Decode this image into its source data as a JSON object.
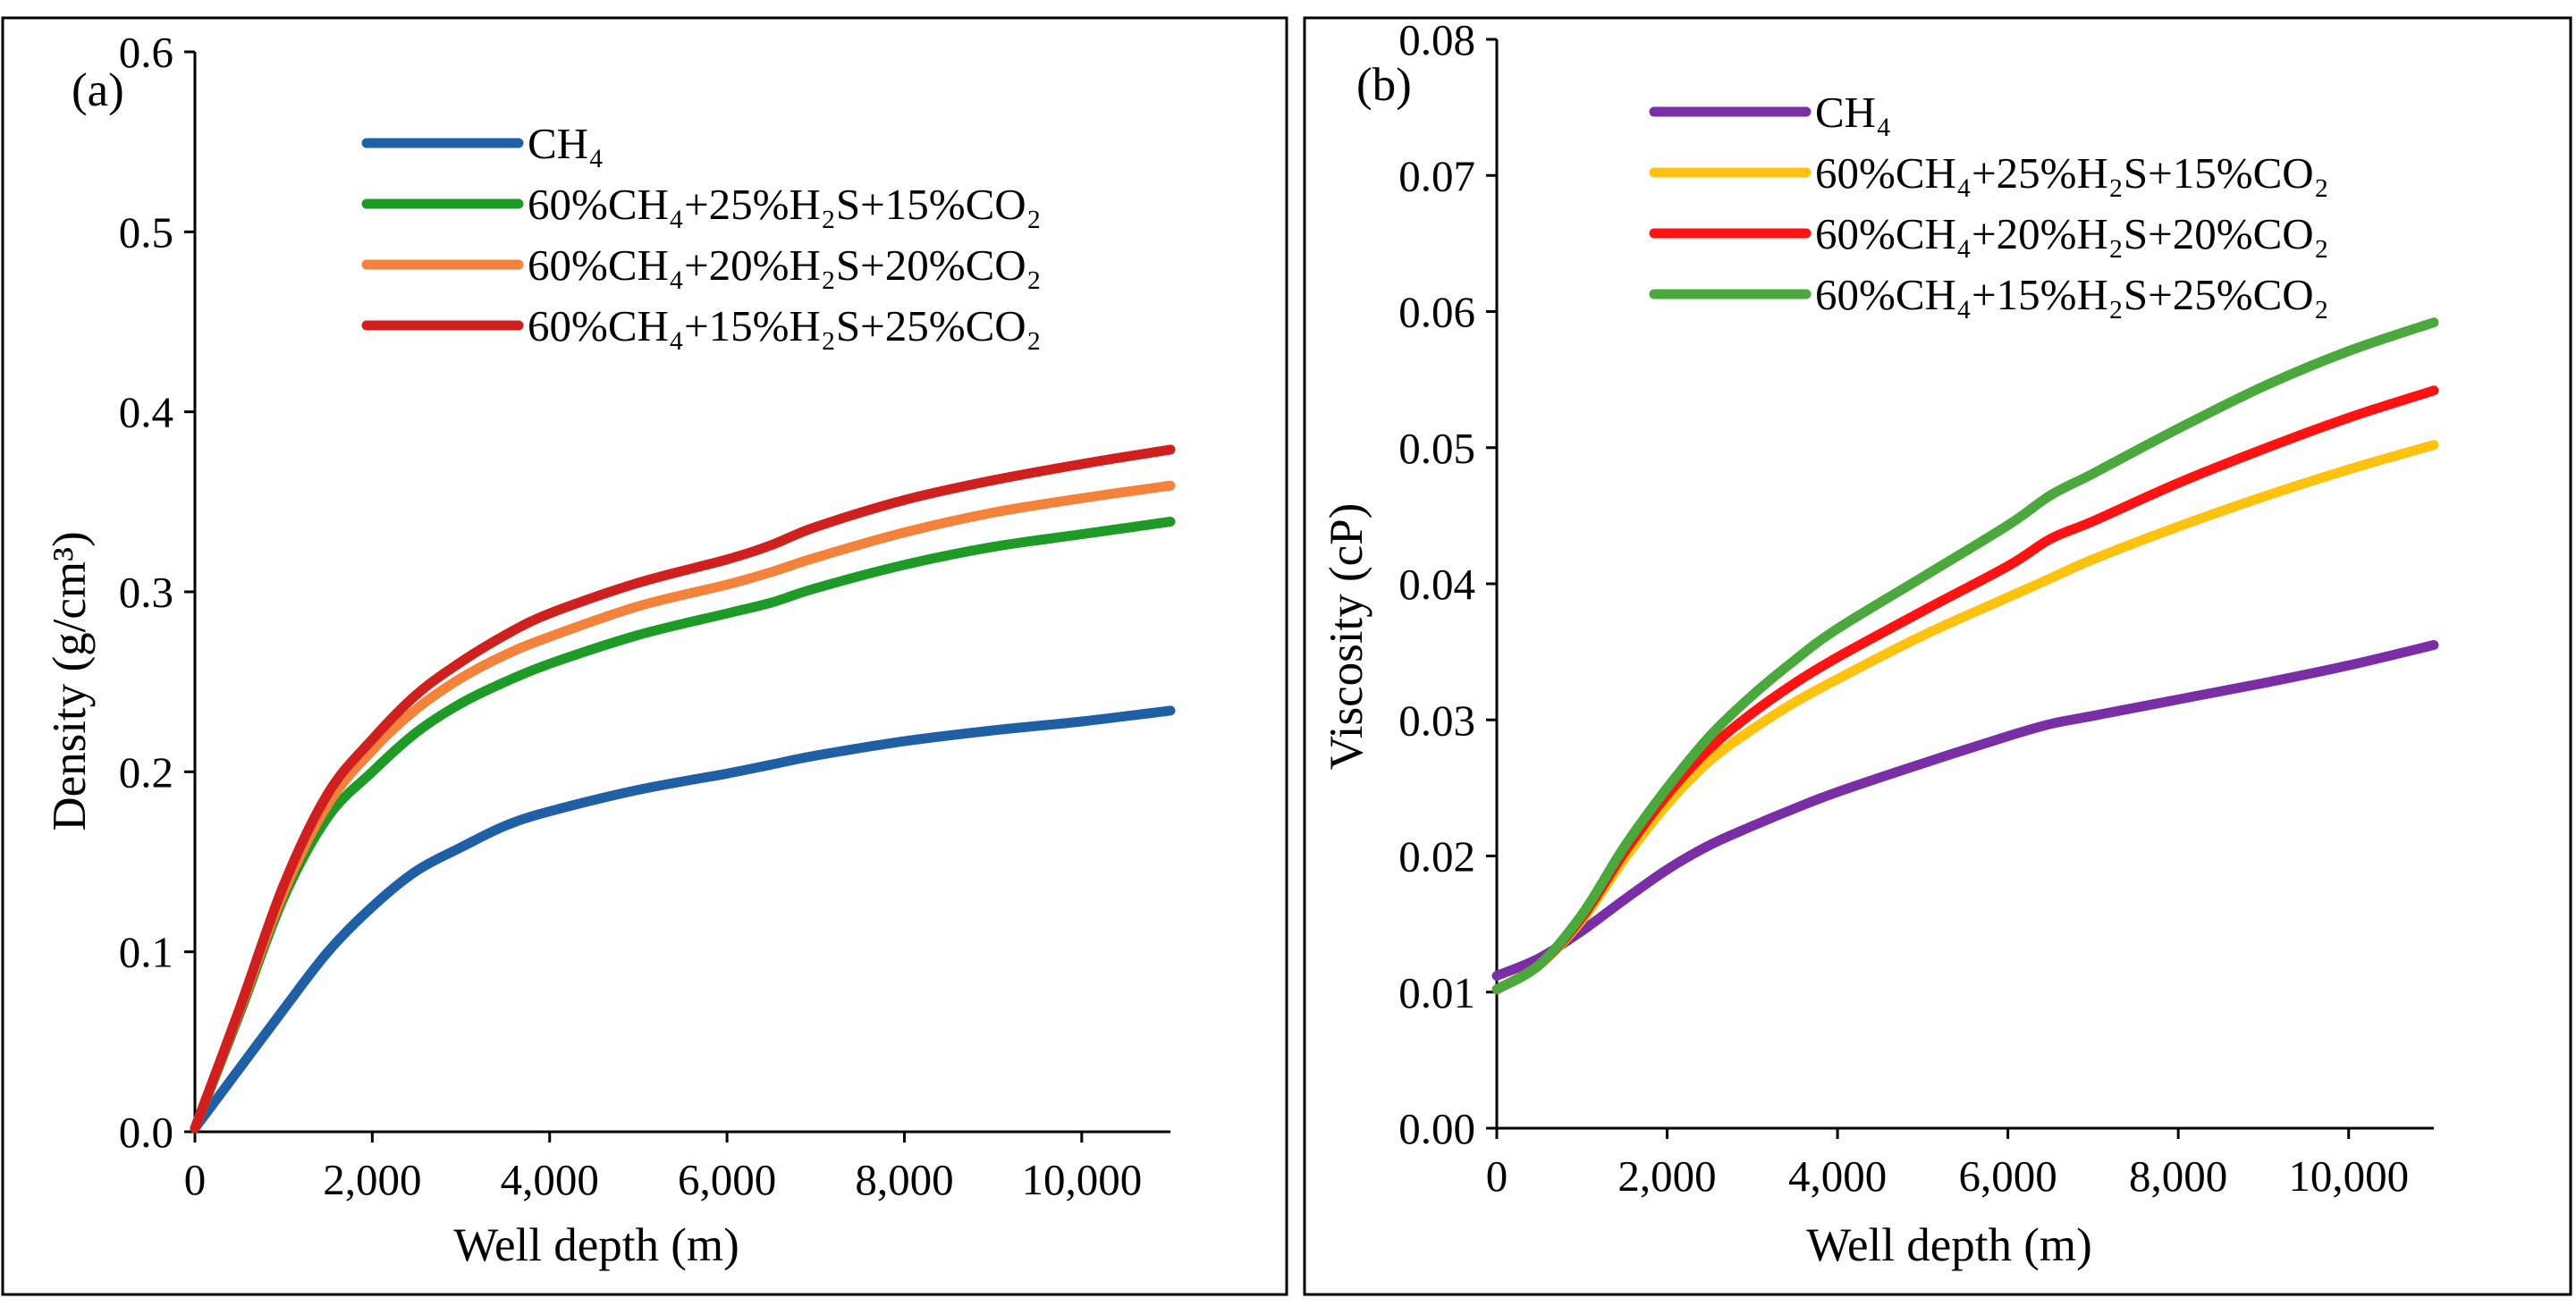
{
  "chart_data": [
    {
      "type": "line",
      "panel_label": "(a)",
      "title": "",
      "xlabel": "Well depth (m)",
      "ylabel": "Density (g/cm³)",
      "xlim": [
        0,
        11000
      ],
      "ylim": [
        0,
        0.6
      ],
      "x_ticks": [
        0,
        2000,
        4000,
        6000,
        8000,
        10000
      ],
      "x_tick_labels": [
        "0",
        "2,000",
        "4,000",
        "6,000",
        "8,000",
        "10,000"
      ],
      "y_ticks": [
        0,
        0.1,
        0.2,
        0.3,
        0.4,
        0.5,
        0.6
      ],
      "y_tick_labels": [
        "0.0",
        "0.1",
        "0.2",
        "0.3",
        "0.4",
        "0.5",
        "0.6"
      ],
      "grid": false,
      "legend_position": "top-left",
      "x": [
        0,
        500,
        1000,
        1500,
        2000,
        2500,
        3000,
        3500,
        4000,
        5000,
        6000,
        6500,
        7000,
        8000,
        9000,
        10000,
        11000
      ],
      "series": [
        {
          "name": "CH₄",
          "color": "#1f5fa6",
          "values": [
            0.002,
            0.035,
            0.068,
            0.1,
            0.125,
            0.145,
            0.158,
            0.17,
            0.178,
            0.19,
            0.199,
            0.204,
            0.209,
            0.217,
            0.223,
            0.228,
            0.234
          ]
        },
        {
          "name": "60%CH₄+25%H₂S+15%CO₂",
          "color": "#1e9a26",
          "values": [
            0.002,
            0.065,
            0.13,
            0.175,
            0.2,
            0.222,
            0.238,
            0.25,
            0.26,
            0.276,
            0.288,
            0.294,
            0.302,
            0.315,
            0.325,
            0.332,
            0.339
          ]
        },
        {
          "name": "60%CH₄+20%H₂S+20%CO₂",
          "color": "#f5823a",
          "values": [
            0.002,
            0.067,
            0.133,
            0.182,
            0.212,
            0.235,
            0.252,
            0.265,
            0.275,
            0.292,
            0.304,
            0.311,
            0.319,
            0.333,
            0.344,
            0.352,
            0.359
          ]
        },
        {
          "name": "60%CH₄+15%H₂S+25%CO₂",
          "color": "#d01f1f",
          "values": [
            0.002,
            0.068,
            0.137,
            0.188,
            0.218,
            0.243,
            0.261,
            0.276,
            0.288,
            0.305,
            0.318,
            0.326,
            0.336,
            0.351,
            0.362,
            0.371,
            0.379
          ]
        }
      ]
    },
    {
      "type": "line",
      "panel_label": "(b)",
      "title": "",
      "xlabel": "Well depth (m)",
      "ylabel": "Viscosity (cP)",
      "xlim": [
        0,
        11000
      ],
      "ylim": [
        0,
        0.08
      ],
      "x_ticks": [
        0,
        2000,
        4000,
        6000,
        8000,
        10000
      ],
      "x_tick_labels": [
        "0",
        "2,000",
        "4,000",
        "6,000",
        "8,000",
        "10,000"
      ],
      "y_ticks": [
        0,
        0.01,
        0.02,
        0.03,
        0.04,
        0.05,
        0.06,
        0.07,
        0.08
      ],
      "y_tick_labels": [
        "0.00",
        "0.01",
        "0.02",
        "0.03",
        "0.04",
        "0.05",
        "0.06",
        "0.07",
        "0.08"
      ],
      "grid": false,
      "legend_position": "top-left",
      "x": [
        0,
        500,
        1000,
        1500,
        2000,
        2500,
        3000,
        3500,
        4000,
        5000,
        6000,
        6500,
        7000,
        8000,
        9000,
        10000,
        11000
      ],
      "series": [
        {
          "name": "CH₄",
          "color": "#7a2ea6",
          "values": [
            0.0112,
            0.0125,
            0.0145,
            0.0168,
            0.019,
            0.0208,
            0.0222,
            0.0235,
            0.0247,
            0.0268,
            0.0288,
            0.0297,
            0.0303,
            0.0315,
            0.0327,
            0.034,
            0.0355
          ]
        },
        {
          "name": "60%CH₄+25%H₂S+15%CO₂",
          "color": "#ffc20e",
          "values": [
            0.0102,
            0.012,
            0.0153,
            0.0198,
            0.0238,
            0.027,
            0.0293,
            0.0313,
            0.033,
            0.0362,
            0.039,
            0.0404,
            0.0418,
            0.0442,
            0.0464,
            0.0484,
            0.0502
          ]
        },
        {
          "name": "60%CH₄+20%H₂S+20%CO₂",
          "color": "#ff1212",
          "values": [
            0.0102,
            0.012,
            0.0155,
            0.0203,
            0.0245,
            0.0279,
            0.0305,
            0.0327,
            0.0346,
            0.038,
            0.0413,
            0.0433,
            0.0446,
            0.0474,
            0.0499,
            0.0522,
            0.0542
          ]
        },
        {
          "name": "60%CH₄+15%H₂S+25%CO₂",
          "color": "#4aa83c",
          "values": [
            0.0102,
            0.012,
            0.0157,
            0.0207,
            0.025,
            0.0288,
            0.0318,
            0.0344,
            0.0367,
            0.0405,
            0.0443,
            0.0465,
            0.0481,
            0.0514,
            0.0545,
            0.0571,
            0.0592
          ]
        }
      ]
    }
  ]
}
